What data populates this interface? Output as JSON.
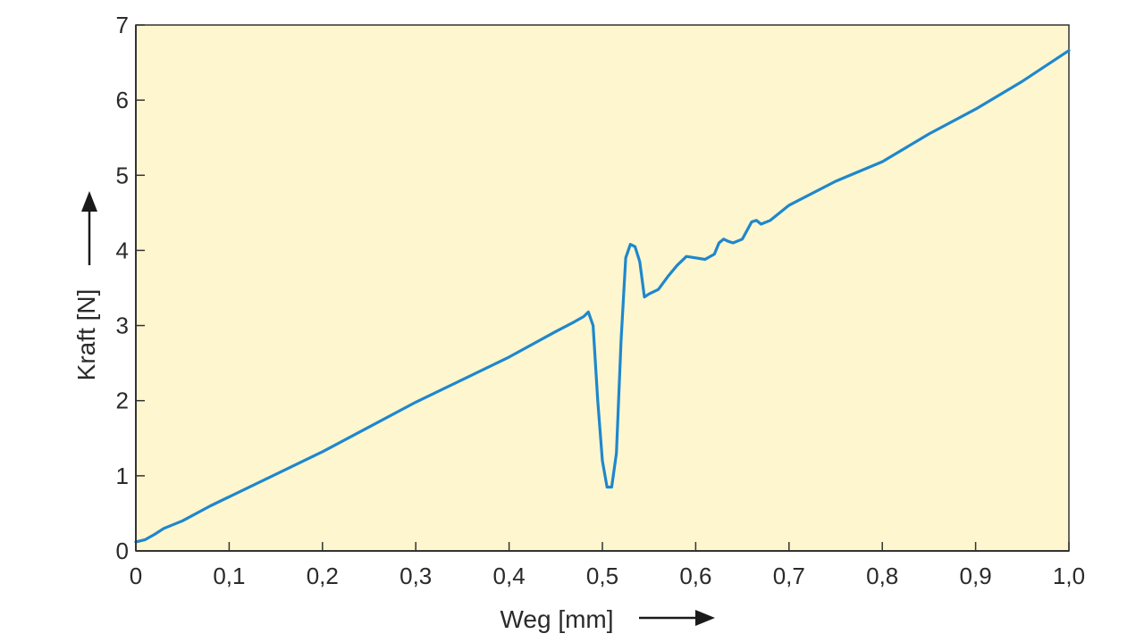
{
  "chart_data": {
    "type": "line",
    "xlabel": "Weg [mm]",
    "ylabel": "Kraft [N]",
    "xlim": [
      0,
      1.0
    ],
    "ylim": [
      0,
      7
    ],
    "x_ticks": [
      0,
      0.1,
      0.2,
      0.3,
      0.4,
      0.5,
      0.6,
      0.7,
      0.8,
      0.9,
      1.0
    ],
    "x_tick_labels": [
      "0",
      "0,1",
      "0,2",
      "0,3",
      "0,4",
      "0,5",
      "0,6",
      "0,7",
      "0,8",
      "0,9",
      "1,0"
    ],
    "y_ticks": [
      0,
      1,
      2,
      3,
      4,
      5,
      6,
      7
    ],
    "y_tick_labels": [
      "0",
      "1",
      "2",
      "3",
      "4",
      "5",
      "6",
      "7"
    ],
    "grid": false,
    "colors": {
      "plot_background": "#fdf6cf",
      "line": "#1f87cc",
      "axis": "#333333"
    },
    "series": [
      {
        "x": [
          0,
          0.01,
          0.02,
          0.03,
          0.05,
          0.08,
          0.1,
          0.15,
          0.2,
          0.25,
          0.3,
          0.35,
          0.4,
          0.45,
          0.47,
          0.48,
          0.485,
          0.49,
          0.495,
          0.5,
          0.505,
          0.51,
          0.515,
          0.52,
          0.525,
          0.53,
          0.535,
          0.54,
          0.545,
          0.55,
          0.56,
          0.57,
          0.58,
          0.59,
          0.6,
          0.61,
          0.62,
          0.625,
          0.63,
          0.635,
          0.64,
          0.65,
          0.66,
          0.665,
          0.67,
          0.68,
          0.7,
          0.75,
          0.8,
          0.85,
          0.9,
          0.95,
          1.0
        ],
        "y": [
          0.12,
          0.15,
          0.22,
          0.3,
          0.4,
          0.6,
          0.72,
          1.02,
          1.32,
          1.65,
          1.98,
          2.28,
          2.58,
          2.92,
          3.05,
          3.12,
          3.18,
          3.0,
          2.0,
          1.2,
          0.85,
          0.85,
          1.3,
          2.8,
          3.9,
          4.08,
          4.05,
          3.85,
          3.38,
          3.42,
          3.48,
          3.65,
          3.8,
          3.92,
          3.9,
          3.88,
          3.95,
          4.1,
          4.15,
          4.12,
          4.1,
          4.15,
          4.38,
          4.4,
          4.35,
          4.4,
          4.6,
          4.92,
          5.18,
          5.55,
          5.88,
          6.25,
          6.66
        ]
      }
    ]
  }
}
